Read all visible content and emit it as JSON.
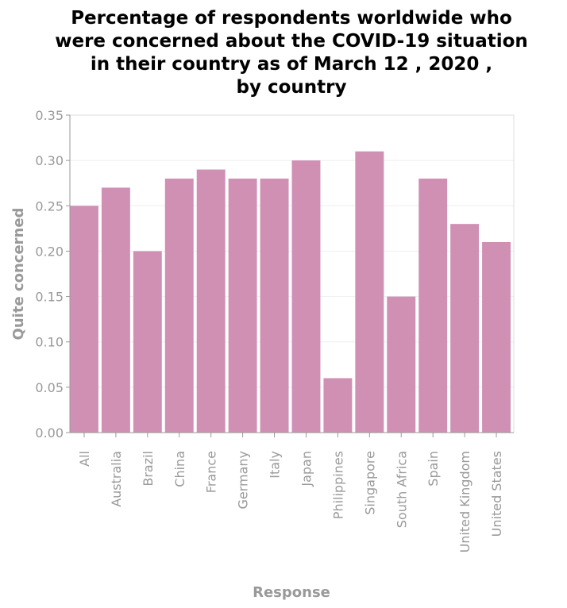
{
  "chart_data": {
    "type": "bar",
    "title_lines": [
      "Percentage of respondents worldwide who",
      "were concerned about the COVID-19 situation",
      "in their country as of March 12 , 2020 ,",
      "by country"
    ],
    "xlabel": "Response",
    "ylabel": "Quite concerned",
    "categories": [
      "All",
      "Australia",
      "Brazil",
      "China",
      "France",
      "Germany",
      "Italy",
      "Japan",
      "Philippines",
      "Singapore",
      "South Africa",
      "Spain",
      "United Kingdom",
      "United States"
    ],
    "values": [
      0.25,
      0.27,
      0.2,
      0.28,
      0.29,
      0.28,
      0.28,
      0.3,
      0.06,
      0.31,
      0.15,
      0.28,
      0.23,
      0.21
    ],
    "ylim": [
      0,
      0.35
    ],
    "yticks": [
      "0.00",
      "0.05",
      "0.10",
      "0.15",
      "0.20",
      "0.25",
      "0.30",
      "0.35"
    ],
    "grid": true,
    "colors": {
      "bar": "#d090b4",
      "grid": "#eeeeee",
      "axis": "#999999",
      "frame": "#dddddd"
    }
  }
}
